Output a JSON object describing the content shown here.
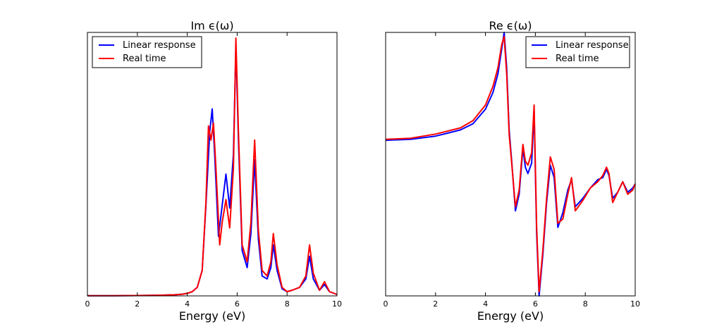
{
  "chart_data": [
    {
      "type": "line",
      "title": "Im ϵ(ω)",
      "xlabel": "Energy (eV)",
      "ylabel": "",
      "xlim": [
        0,
        10
      ],
      "xticks": [
        "0",
        "2",
        "4",
        "6",
        "8",
        "10"
      ],
      "y_tick_labels_shown": false,
      "legend": {
        "position": "top-left",
        "entries": [
          "Linear response",
          "Real time"
        ]
      },
      "series": [
        {
          "name": "Linear response",
          "color": "#0000ff",
          "x": [
            0,
            1,
            2,
            3,
            3.5,
            3.8,
            4,
            4.2,
            4.4,
            4.6,
            4.75,
            4.9,
            5.0,
            5.1,
            5.25,
            5.4,
            5.55,
            5.7,
            5.85,
            5.95,
            6.05,
            6.2,
            6.4,
            6.55,
            6.7,
            6.85,
            7.0,
            7.2,
            7.35,
            7.45,
            7.6,
            7.8,
            8.0,
            8.2,
            8.5,
            8.75,
            8.9,
            9.05,
            9.3,
            9.5,
            9.7,
            10
          ],
          "y": [
            0.005,
            0.008,
            0.012,
            0.025,
            0.04,
            0.06,
            0.09,
            0.15,
            0.3,
            0.9,
            3.2,
            5.8,
            6.6,
            5.0,
            2.1,
            3.2,
            4.3,
            3.1,
            5.0,
            8.8,
            5.5,
            1.6,
            1.0,
            2.2,
            4.8,
            2.0,
            0.7,
            0.6,
            1.0,
            1.8,
            0.9,
            0.25,
            0.15,
            0.2,
            0.3,
            0.6,
            1.4,
            0.6,
            0.2,
            0.4,
            0.15,
            0.05
          ]
        },
        {
          "name": "Real time",
          "color": "#ff0000",
          "x": [
            0,
            1,
            2,
            3,
            3.5,
            3.8,
            4,
            4.2,
            4.4,
            4.6,
            4.75,
            4.85,
            4.95,
            5.05,
            5.15,
            5.3,
            5.4,
            5.55,
            5.7,
            5.85,
            5.95,
            6.05,
            6.2,
            6.4,
            6.55,
            6.7,
            6.85,
            7.0,
            7.2,
            7.35,
            7.45,
            7.6,
            7.8,
            8.0,
            8.2,
            8.5,
            8.75,
            8.9,
            9.05,
            9.3,
            9.5,
            9.7,
            10
          ],
          "y": [
            0.005,
            0.008,
            0.012,
            0.025,
            0.04,
            0.06,
            0.09,
            0.15,
            0.3,
            0.9,
            3.3,
            6.0,
            5.5,
            6.1,
            4.5,
            1.8,
            2.6,
            3.4,
            2.4,
            4.5,
            9.1,
            5.8,
            1.8,
            1.2,
            2.6,
            5.5,
            2.3,
            0.9,
            0.7,
            1.2,
            2.2,
            1.1,
            0.3,
            0.15,
            0.2,
            0.3,
            0.7,
            1.8,
            0.8,
            0.2,
            0.5,
            0.15,
            0.05
          ]
        }
      ]
    },
    {
      "type": "line",
      "title": "Re ϵ(ω)",
      "xlabel": "Energy (eV)",
      "ylabel": "",
      "xlim": [
        0,
        10
      ],
      "xticks": [
        "0",
        "2",
        "4",
        "6",
        "8",
        "10"
      ],
      "y_tick_labels_shown": false,
      "legend": {
        "position": "top-right",
        "entries": [
          "Linear response",
          "Real time"
        ]
      },
      "series": [
        {
          "name": "Linear response",
          "color": "#0000ff",
          "x": [
            0,
            1,
            2,
            3,
            3.5,
            4.0,
            4.3,
            4.5,
            4.65,
            4.75,
            4.85,
            4.95,
            5.05,
            5.2,
            5.35,
            5.5,
            5.6,
            5.7,
            5.85,
            5.95,
            6.05,
            6.15,
            6.3,
            6.45,
            6.6,
            6.75,
            6.9,
            7.1,
            7.3,
            7.45,
            7.6,
            7.9,
            8.2,
            8.5,
            8.7,
            8.85,
            8.95,
            9.1,
            9.3,
            9.5,
            9.7,
            9.9,
            10
          ],
          "y": [
            6.0,
            6.05,
            6.2,
            6.5,
            6.8,
            7.5,
            8.3,
            9.2,
            10.4,
            11.2,
            9.5,
            6.5,
            5.0,
            2.6,
            3.4,
            5.6,
            4.7,
            4.4,
            4.9,
            7.4,
            1.5,
            -1.5,
            0.5,
            3.0,
            4.8,
            4.2,
            1.8,
            2.5,
            3.6,
            4.1,
            2.8,
            3.2,
            3.7,
            4.1,
            4.2,
            4.6,
            4.3,
            3.2,
            3.5,
            4.0,
            3.5,
            3.7,
            3.9
          ]
        },
        {
          "name": "Real time",
          "color": "#ff0000",
          "x": [
            0,
            1,
            2,
            3,
            3.5,
            4.0,
            4.3,
            4.5,
            4.65,
            4.75,
            4.85,
            4.95,
            5.05,
            5.2,
            5.35,
            5.5,
            5.6,
            5.7,
            5.85,
            5.95,
            6.05,
            6.15,
            6.3,
            6.45,
            6.6,
            6.75,
            6.9,
            7.1,
            7.3,
            7.45,
            7.6,
            7.9,
            8.2,
            8.5,
            8.7,
            8.85,
            8.95,
            9.1,
            9.3,
            9.5,
            9.7,
            9.9,
            10
          ],
          "y": [
            6.05,
            6.1,
            6.3,
            6.6,
            6.95,
            7.7,
            8.6,
            9.5,
            10.6,
            11.0,
            9.2,
            6.3,
            4.9,
            2.8,
            3.6,
            5.8,
            5.0,
            4.8,
            5.4,
            7.7,
            1.8,
            -1.3,
            0.7,
            3.2,
            5.2,
            4.6,
            2.0,
            2.2,
            3.4,
            4.2,
            2.6,
            3.1,
            3.7,
            4.0,
            4.3,
            4.7,
            4.4,
            3.0,
            3.5,
            4.0,
            3.4,
            3.6,
            3.9
          ]
        }
      ]
    }
  ]
}
